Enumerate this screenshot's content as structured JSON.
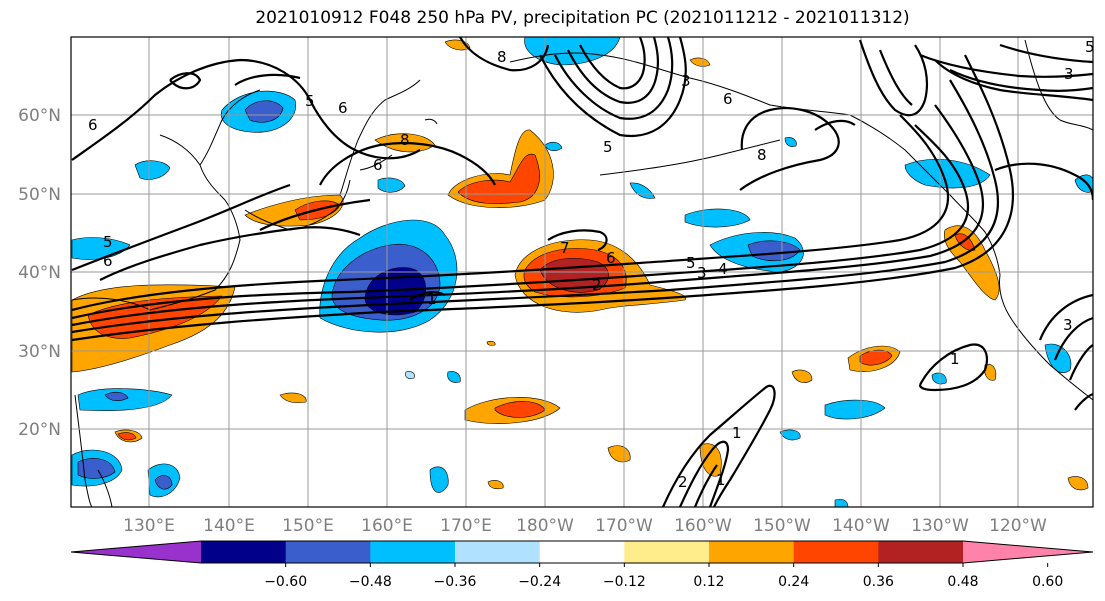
{
  "title": "2021010912 F048 250 hPa PV, precipitation PC (2021011212 - 2021011312)",
  "latitude_labels": [
    "60°N",
    "50°N",
    "40°N",
    "30°N",
    "20°N"
  ],
  "longitude_labels": [
    "130°E",
    "140°E",
    "150°E",
    "160°E",
    "170°E",
    "180°W",
    "170°W",
    "160°W",
    "150°W",
    "140°W",
    "130°W",
    "120°W"
  ],
  "colorbar": {
    "colors": [
      "#9932cc",
      "#00008b",
      "#3a5fcd",
      "#00bfff",
      "#b0e2ff",
      "#ffffff",
      "#ffec8b",
      "#ffa500",
      "#ff4500",
      "#b22222",
      "#ff82ab"
    ],
    "ticks": [
      "−0.60",
      "−0.48",
      "−0.36",
      "−0.24",
      "−0.12",
      "0.12",
      "0.24",
      "0.36",
      "0.48",
      "0.60"
    ]
  },
  "contour_labels": [
    "8",
    "5",
    "6",
    "6",
    "8",
    "5",
    "6",
    "6",
    "8",
    "5",
    "6",
    "7",
    "6",
    "5",
    "3",
    "4",
    "2",
    "1",
    "2",
    "1",
    "1",
    "3",
    "3",
    "5",
    "3",
    "1"
  ]
}
